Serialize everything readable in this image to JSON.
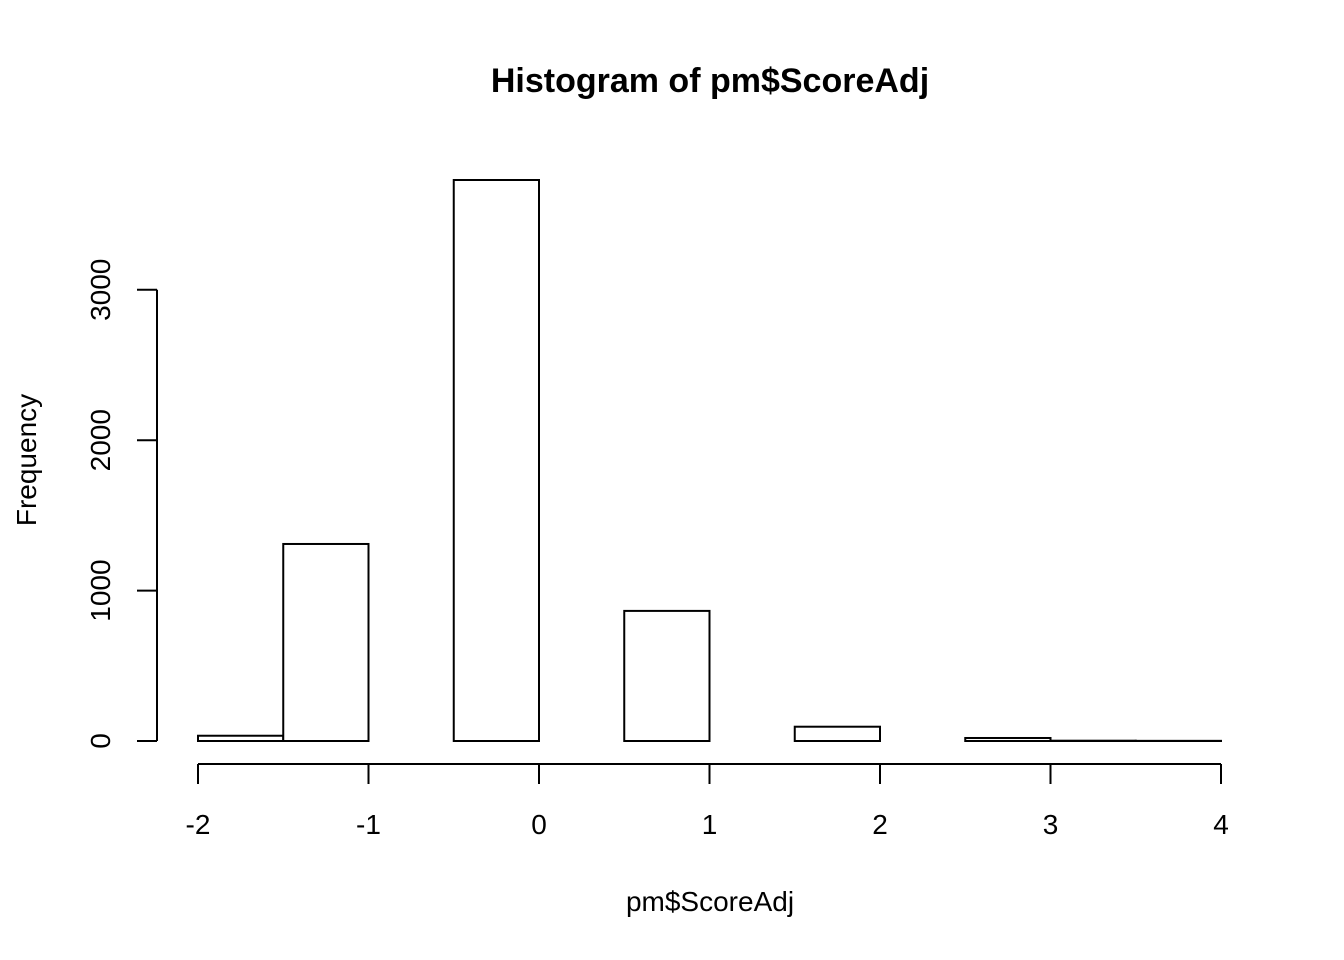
{
  "chart_data": {
    "type": "bar",
    "title": "Histogram of pm$ScoreAdj",
    "xlabel": "pm$ScoreAdj",
    "ylabel": "Frequency",
    "xlim": [
      -2,
      4
    ],
    "ylim": [
      0,
      3730
    ],
    "x_ticks": [
      -2,
      -1,
      0,
      1,
      2,
      3,
      4
    ],
    "x_tick_labels": [
      "-2",
      "-1",
      "0",
      "1",
      "2",
      "3",
      "4"
    ],
    "y_ticks": [
      0,
      1000,
      2000,
      3000
    ],
    "y_tick_labels": [
      "0",
      "1000",
      "2000",
      "3000"
    ],
    "bins": [
      {
        "start": -2.0,
        "end": -1.5,
        "value": 35
      },
      {
        "start": -1.5,
        "end": -1.0,
        "value": 1310
      },
      {
        "start": -1.0,
        "end": -0.5,
        "value": 0
      },
      {
        "start": -0.5,
        "end": 0.0,
        "value": 3730
      },
      {
        "start": 0.0,
        "end": 0.5,
        "value": 0
      },
      {
        "start": 0.5,
        "end": 1.0,
        "value": 865
      },
      {
        "start": 1.0,
        "end": 1.5,
        "value": 0
      },
      {
        "start": 1.5,
        "end": 2.0,
        "value": 95
      },
      {
        "start": 2.0,
        "end": 2.5,
        "value": 0
      },
      {
        "start": 2.5,
        "end": 3.0,
        "value": 20
      },
      {
        "start": 3.0,
        "end": 3.5,
        "value": 2
      },
      {
        "start": 3.5,
        "end": 4.0,
        "value": 1
      }
    ]
  }
}
